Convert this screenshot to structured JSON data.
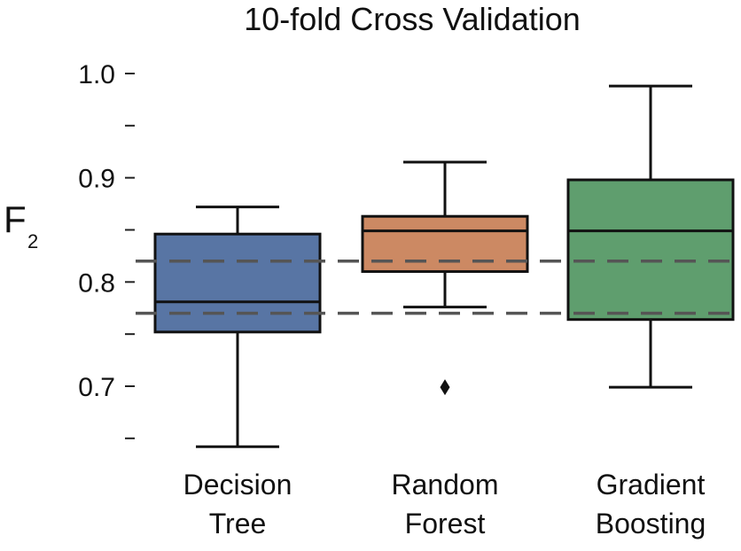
{
  "chart_data": {
    "type": "box",
    "title": "10-fold Cross Validation",
    "ylabel": "F",
    "ylabel_subscript": "2",
    "xlabel": "",
    "ylim": [
      0.63,
      1.03
    ],
    "yticks_major": [
      0.7,
      0.8,
      0.9,
      1.0
    ],
    "yticks_minor": [
      0.65,
      0.75,
      0.85,
      0.95
    ],
    "ytick_labels": [
      "0.7",
      "0.8",
      "0.9",
      "1.0"
    ],
    "grid": false,
    "legend": "none",
    "categories": [
      [
        "Decision",
        "Tree"
      ],
      [
        "Random",
        "Forest"
      ],
      [
        "Gradient",
        "Boosting"
      ]
    ],
    "boxes": [
      {
        "whisker_low": 0.642,
        "q1": 0.752,
        "median": 0.781,
        "q3": 0.846,
        "whisker_high": 0.872,
        "outliers": [],
        "color": "#5875a4"
      },
      {
        "whisker_low": 0.776,
        "q1": 0.81,
        "median": 0.849,
        "q3": 0.863,
        "whisker_high": 0.915,
        "outliers": [
          0.699
        ],
        "color": "#cc8963"
      },
      {
        "whisker_low": 0.699,
        "q1": 0.764,
        "median": 0.849,
        "q3": 0.898,
        "whisker_high": 0.988,
        "outliers": [],
        "color": "#5f9e6e"
      }
    ],
    "reference_lines": [
      0.77,
      0.82
    ],
    "reference_line_color": "#555555"
  }
}
